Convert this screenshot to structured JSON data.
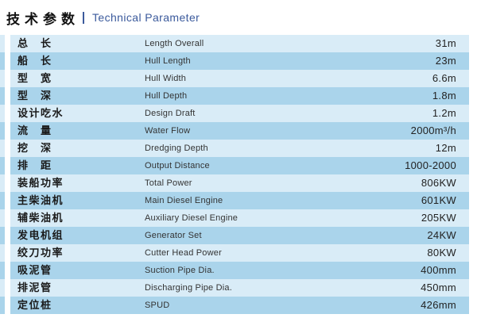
{
  "header": {
    "title_cn": "技术参数",
    "separator": "|",
    "title_en": "Technical Parameter"
  },
  "colors": {
    "row_light": "#d9ecf7",
    "row_dark": "#aad4eb",
    "accent_blue": "#3b5a9c"
  },
  "table": {
    "rows": [
      {
        "cn": "总　长",
        "en": "Length Overall",
        "value": "31m"
      },
      {
        "cn": "船　长",
        "en": "Hull Length",
        "value": "23m"
      },
      {
        "cn": "型　宽",
        "en": "Hull Width",
        "value": "6.6m"
      },
      {
        "cn": "型　深",
        "en": "Hull Depth",
        "value": "1.8m"
      },
      {
        "cn": "设计吃水",
        "en": "Design Draft",
        "value": "1.2m"
      },
      {
        "cn": "流　量",
        "en": "Water Flow",
        "value": "2000m³/h"
      },
      {
        "cn": "挖　深",
        "en": "Dredging Depth",
        "value": "12m"
      },
      {
        "cn": "排　距",
        "en": "Output Distance",
        "value": "1000-2000"
      },
      {
        "cn": "装船功率",
        "en": "Total Power",
        "value": "806KW"
      },
      {
        "cn": "主柴油机",
        "en": "Main Diesel Engine",
        "value": "601KW"
      },
      {
        "cn": "辅柴油机",
        "en": "Auxiliary Diesel Engine",
        "value": "205KW"
      },
      {
        "cn": "发电机组",
        "en": "Generator Set",
        "value": "24KW"
      },
      {
        "cn": "绞刀功率",
        "en": "Cutter Head Power",
        "value": "80KW"
      },
      {
        "cn": "吸泥管",
        "en": "Suction Pipe Dia.",
        "value": "400mm"
      },
      {
        "cn": "排泥管",
        "en": "Discharging Pipe Dia.",
        "value": "450mm"
      },
      {
        "cn": "定位桩",
        "en": "SPUD",
        "value": "426mm"
      }
    ]
  }
}
